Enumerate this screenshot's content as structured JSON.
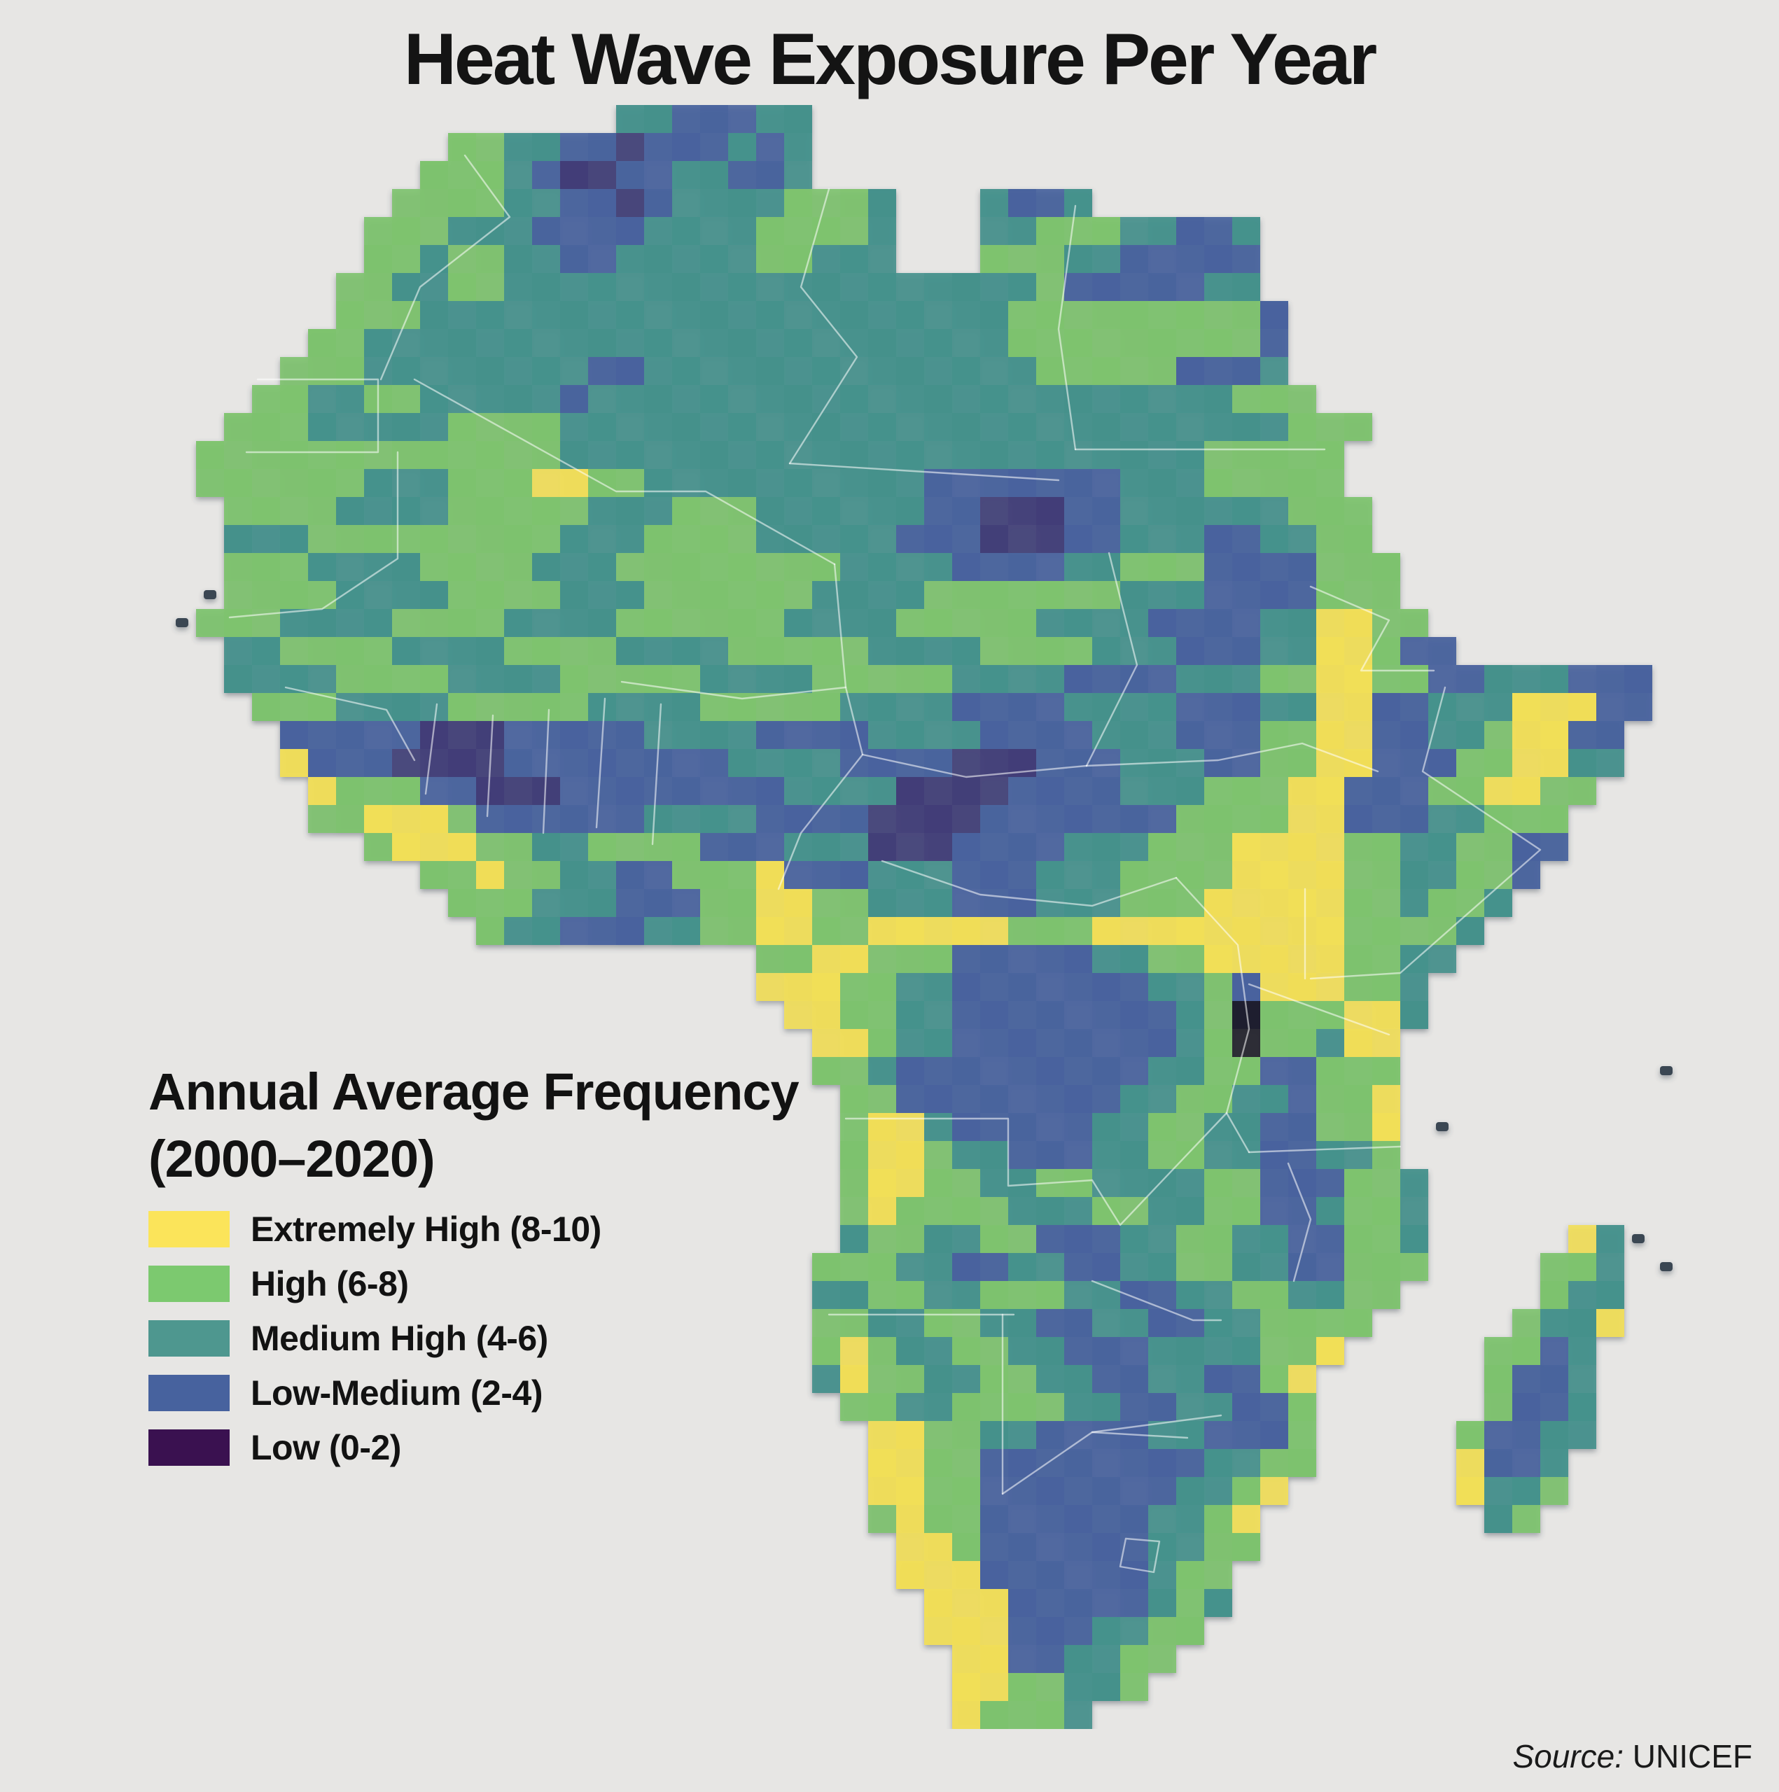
{
  "title": "Heat Wave Exposure Per Year",
  "legend": {
    "title_line1": "Annual Average Frequency",
    "title_line2": "(2000–2020)",
    "items": [
      {
        "label": "Extremely High (8-10)",
        "color": "#fbe45a"
      },
      {
        "label": "High (6-8)",
        "color": "#7cc96f"
      },
      {
        "label": "Medium High (4-6)",
        "color": "#4e978f"
      },
      {
        "label": "Low-Medium (2-4)",
        "color": "#47629e"
      },
      {
        "label": "Low (0-2)",
        "color": "#3a1150"
      }
    ]
  },
  "source": {
    "prefix": "Source:",
    "name": "UNICEF"
  },
  "colors": {
    "background": "#e7e6e4",
    "border_line": "#ffffff"
  },
  "map": {
    "cell": 40,
    "cols": 54,
    "rows": 58,
    "palette": {
      "Y": "#f2df55",
      "G": "#7cc36c",
      "T": "#42908b",
      "B": "#46619d",
      "P": "#3f3c76",
      "K": "#181726",
      "i": "#3b4752"
    },
    "grid": [
      "................TTBBBTT...............................",
      "..........GGTTBBPBBBTBT...............................",
      ".........GGGTBPPBBTTBBT...............................",
      "........GGGGTTBBPBTTTTGGGT...TBBT.....................",
      ".......GGGTTTBBBBTTTTGGGGT...TTGGGTTBBT...............",
      ".......GGTGGTTBBTTTTTGGTTT...GGGTTBBBBB...............",
      "......GGTTGGTTTTTTTTTTTTTTTTTTTGBBBBBTT...............",
      "......GGGTTTTTTTTTTTTTTTTTTTTTGGGGGGGGGB..............",
      ".....GGTTTTTTTTTTTTTTTTTTTTTTTGGGGGGGGGB..............",
      "....GGGTTTTTTTTBBTTTTTTTTTTTTTTGGGGGBBBT..............",
      "...GGTTGGTTTTTBTTTTTTTTTTTTTTTTTTTTTTTGGG.............",
      "..GGGTTTTTGGGGTTTTTTTTTTTTTTTTTTTTTTTTTTGGG...........",
      ".GGGGGGGGGGGGGTTTTTTTTTTTTTTTTTTTTTTTGGGGG............",
      ".GGGGGGTTTGGGYYGGTTTTTTTTTTBBBBBBBTTTGGGGG............",
      "..GGGGTTTTGGGGGTTTGGGTTTTTTBBPPPBBTTTTTTGGG...........",
      "..TTTGGGGGGGGGTTTGGGGTTTTTBBBPPPBBTTTBBTTGG...........",
      "..GGGTTTTGGGGTTTGGGGGGGGTTTTBBBBTTGGGBBBBGGG..........",
      ".iGGGGTTTTGGGGTTTGGGGGGTTTTGGGGGGGTTTBBBBGGG..........",
      "iGGGTTTTGGGGTTTTGGGGGGTTTTGGGGGTTTTBBBBTTYYGG.........",
      "..TTGGGGTTTTGGGGTTTTGGGGGTTTTGGGGTTTBBBTTYYGBB........",
      "..TTTTGGGGTTTTGGGGGTTTTGGGGGTTTTBBBBTTTGGYYGGBBTTTBBB.",
      "...GGGTTTTGGGGGTTTTGGGGGTTTTBBBBTTTTBBBTTYYBBTTTYYYBB.",
      "....BBBBBPPPBBBBBTTTTBBBBTTTTBBBBTTTBBBGGYYBBTTGYYBB..",
      "....YBBBPPPPBBBBBBBBTTTTBBBBPPPBBBTTTBBGGYYBBBGGYYTT..",
      ".....YGGGBBPPPBBBBBBBBTTTTPPPPBBBBTTTGGGYYBBBGGYYGG...",
      ".....GGYYYGBBBBBBTTTTBBBBPPPPBBBBBBBGGGGYYBBBTTGGG....",
      ".......GYYYGGTTGGGGBBBTTTPPPBBBBTTTGGGYYYYGGTTGGBB....",
      ".........GGYGGTTBBGGGYBBBTTTBBBTTTGGGGYYYYGGTTGGB.....",
      "..........GGGTTTBBBGGYYGGTTTBBBTTTGGGYYYYYGGTGGT......",
      "...........GTTBBBTTGGYYGGYYYYYGGGYYYYYYYYYGGGGT.......",
      ".....................GGYYGGGBBBBBTTGGYYYYYGGTT........",
      ".....................YYYGGTTBBBBBBBTTGBYYYGGT.........",
      "......................YYGGTTBBBBBBBBTGKGGGYYT.........",
      ".......................YYGTTBBBBBBBBTGKGGTYY..........",
      ".......................GGTBBBBBBBBBTTGGBBGGG.........i",
      "........................GGBBBBBBBBTTGGTTBGGY..........",
      "........................GYYTBBBBBTTGGTTBBGGY.i........",
      "........................GYYGTTBBBTTGGTTBBTTG..........",
      "........................GYYGGTTGGTTTTGGBBBGGT.........",
      "........................GYGGGGTTTGGTTGGBBTGGT.........",
      "........................TGGTTGGBBBTTGGTTBBGGT.....YTi.",
      ".......................GGGTTBBTTBBTTGGTTBBGGG....GGT.i",
      ".......................TTGGTTGGGTTBBTTGGTTGG.....GTT..",
      ".......................GGTTGGTTBBTTBBTTGGGG.....GTTY..",
      ".......................GYGTTGGTTBBBTTTTGGY.....GGBT...",
      ".......................TYGGTTGGTTBBTTBBGY......GBBT...",
      "........................GGTTGGGGTTBBTTBBG......GBBT...",
      ".........................YYGGTTBBBBTTBBBG.....GBBTT...",
      ".........................YYGGBBBBBBBBTTGG.....YBBT....",
      ".........................YYGGBBBBBBBTTGY......YTTG....",
      ".........................GYGGBBBBBBTTGY........TG.....",
      "..........................YYGBBBBBBTTGG...............",
      "..........................YYYBBBBBBTGG................",
      "...........................YYYBBBBBTGT................",
      "...........................YYYBBBTTGG.................",
      "............................YYBBTTGG..................",
      "............................YYGGTTG...................",
      "............................YGGGT....................."
    ],
    "borders": [
      [
        [
          3.2,
          9.8
        ],
        [
          7.5,
          9.8
        ],
        [
          7.5,
          12.4
        ],
        [
          2.8,
          12.4
        ]
      ],
      [
        [
          2.2,
          18.3
        ],
        [
          5.5,
          18.0
        ],
        [
          8.2,
          16.2
        ],
        [
          8.2,
          12.4
        ]
      ],
      [
        [
          10.6,
          1.8
        ],
        [
          12.2,
          4.0
        ],
        [
          9.0,
          6.5
        ],
        [
          7.6,
          9.8
        ]
      ],
      [
        [
          8.8,
          9.8
        ],
        [
          16.0,
          13.8
        ],
        [
          19.2,
          13.8
        ],
        [
          23.8,
          16.4
        ]
      ],
      [
        [
          23.6,
          3.0
        ],
        [
          22.6,
          6.5
        ],
        [
          24.6,
          9.0
        ],
        [
          22.2,
          12.8
        ]
      ],
      [
        [
          22.2,
          12.8
        ],
        [
          31.8,
          13.4
        ]
      ],
      [
        [
          32.4,
          3.6
        ],
        [
          31.8,
          8.0
        ],
        [
          32.4,
          12.3
        ]
      ],
      [
        [
          32.4,
          12.3
        ],
        [
          41.3,
          12.3
        ]
      ],
      [
        [
          33.6,
          16.0
        ],
        [
          34.6,
          20.0
        ],
        [
          32.8,
          23.6
        ]
      ],
      [
        [
          23.8,
          16.4
        ],
        [
          24.2,
          20.8
        ]
      ],
      [
        [
          16.2,
          20.6
        ],
        [
          20.5,
          21.2
        ],
        [
          24.2,
          20.8
        ],
        [
          24.8,
          23.2
        ],
        [
          22.6,
          26.0
        ],
        [
          21.8,
          28.0
        ]
      ],
      [
        [
          9.6,
          21.4
        ],
        [
          9.2,
          24.6
        ]
      ],
      [
        [
          11.6,
          21.8
        ],
        [
          11.4,
          25.4
        ]
      ],
      [
        [
          13.6,
          21.6
        ],
        [
          13.4,
          26.0
        ]
      ],
      [
        [
          15.6,
          21.2
        ],
        [
          15.3,
          25.8
        ]
      ],
      [
        [
          17.6,
          21.4
        ],
        [
          17.3,
          26.4
        ]
      ],
      [
        [
          4.2,
          20.8
        ],
        [
          7.8,
          21.6
        ],
        [
          8.8,
          23.4
        ]
      ],
      [
        [
          32.8,
          23.6
        ],
        [
          37.5,
          23.4
        ],
        [
          40.5,
          22.8
        ],
        [
          43.2,
          23.8
        ]
      ],
      [
        [
          40.8,
          17.2
        ],
        [
          43.6,
          18.4
        ],
        [
          42.6,
          20.2
        ],
        [
          45.2,
          20.2
        ]
      ],
      [
        [
          45.6,
          20.8
        ],
        [
          44.8,
          23.8
        ],
        [
          49.0,
          26.6
        ],
        [
          44.0,
          31.0
        ],
        [
          40.8,
          31.2
        ]
      ],
      [
        [
          24.8,
          23.2
        ],
        [
          28.5,
          24.0
        ],
        [
          32.8,
          23.6
        ]
      ],
      [
        [
          25.5,
          27.0
        ],
        [
          29.0,
          28.2
        ],
        [
          33.0,
          28.6
        ],
        [
          36.0,
          27.6
        ]
      ],
      [
        [
          36.0,
          27.6
        ],
        [
          38.2,
          30.0
        ],
        [
          38.6,
          33.0
        ],
        [
          37.8,
          36.0
        ],
        [
          38.6,
          37.4
        ]
      ],
      [
        [
          38.6,
          31.4
        ],
        [
          43.6,
          33.2
        ]
      ],
      [
        [
          38.6,
          37.4
        ],
        [
          44.0,
          37.2
        ]
      ],
      [
        [
          24.2,
          36.2
        ],
        [
          30.0,
          36.2
        ],
        [
          30.0,
          38.6
        ],
        [
          33.0,
          38.4
        ],
        [
          34.0,
          40.0
        ],
        [
          37.8,
          36.0
        ]
      ],
      [
        [
          23.6,
          43.2
        ],
        [
          30.2,
          43.2
        ]
      ],
      [
        [
          29.8,
          43.2
        ],
        [
          29.8,
          49.6
        ]
      ],
      [
        [
          29.8,
          49.6
        ],
        [
          33.0,
          47.4
        ],
        [
          36.4,
          47.6
        ]
      ],
      [
        [
          33.0,
          42.0
        ],
        [
          36.6,
          43.4
        ],
        [
          37.6,
          43.4
        ]
      ],
      [
        [
          33.0,
          47.4
        ],
        [
          37.6,
          46.8
        ]
      ],
      [
        [
          40.0,
          37.8
        ],
        [
          40.8,
          39.8
        ],
        [
          40.2,
          42.0
        ]
      ],
      [
        [
          34.2,
          51.2
        ],
        [
          35.4,
          51.3
        ],
        [
          35.2,
          52.4
        ],
        [
          34.0,
          52.2
        ],
        [
          34.2,
          51.2
        ]
      ],
      [
        [
          40.6,
          28.0
        ],
        [
          40.6,
          31.2
        ]
      ]
    ]
  }
}
